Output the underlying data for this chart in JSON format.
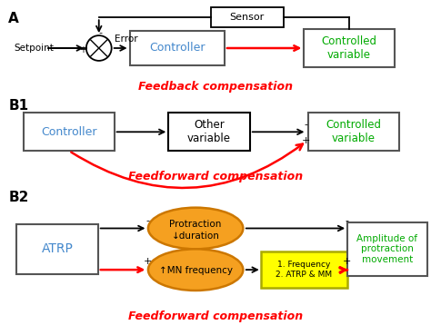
{
  "bg_color": "#ffffff",
  "blue_text": "#4488cc",
  "green_text": "#00aa00",
  "red_color": "#ff0000",
  "orange_fill": "#f5a020",
  "orange_border": "#cc7700",
  "yellow_fill": "#ffff00",
  "yellow_border": "#aaaa00",
  "black": "#000000",
  "gray_border": "#555555",
  "label_A": "A",
  "label_B1": "B1",
  "label_B2": "B2",
  "feedback_label": "Feedback compensation",
  "feedforward_label1": "Feedforward compensation",
  "feedforward_label2": "Feedforward compensation"
}
